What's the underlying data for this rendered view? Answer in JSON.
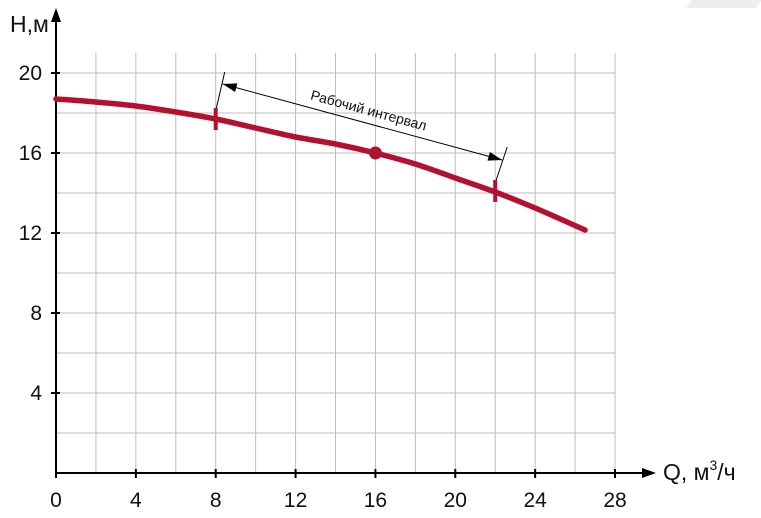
{
  "chart_data": {
    "type": "line",
    "title": "",
    "xlabel": "Q, м",
    "xlabel_sup": "3",
    "xlabel_suffix": "/ч",
    "ylabel": "H,м",
    "xlim": [
      0,
      28
    ],
    "ylim": [
      0,
      21
    ],
    "x_ticks": [
      0,
      4,
      8,
      12,
      16,
      20,
      24,
      28
    ],
    "y_ticks": [
      4,
      8,
      12,
      16,
      20
    ],
    "grid": true,
    "grid_step_x": 2,
    "grid_step_y": 2,
    "colors": {
      "curve": "#b3112e",
      "grid": "#bdbdbd",
      "axis": "#000000"
    },
    "series": [
      {
        "x": [
          0,
          2,
          4,
          6,
          8,
          10,
          12,
          14,
          16,
          18,
          20,
          22,
          24,
          26.5
        ],
        "y": [
          18.7,
          18.55,
          18.35,
          18.05,
          17.7,
          17.25,
          16.8,
          16.45,
          16.0,
          15.45,
          14.75,
          14.05,
          13.25,
          12.15
        ]
      }
    ],
    "operating_point": {
      "x": 16,
      "y": 16.0
    },
    "interval_markers": [
      {
        "x": 8,
        "y": 17.7
      },
      {
        "x": 22,
        "y": 14.1
      }
    ],
    "annotation": {
      "text": "Рабочий интервал",
      "x_start": 8,
      "x_end": 22
    }
  }
}
